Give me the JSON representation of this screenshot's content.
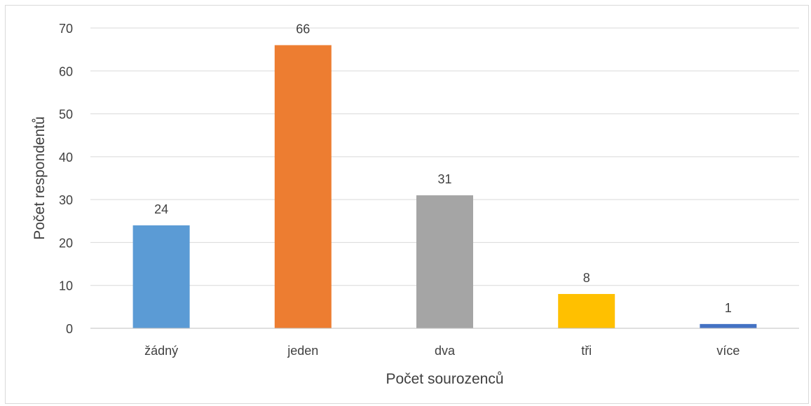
{
  "chart_data": {
    "type": "bar",
    "title": "",
    "xlabel": "Počet sourozenců",
    "ylabel": "Počet respondentů",
    "categories": [
      "žádný",
      "jeden",
      "dva",
      "tři",
      "více"
    ],
    "values": [
      24,
      66,
      31,
      8,
      1
    ],
    "colors": [
      "#5b9bd5",
      "#ed7d31",
      "#a5a5a5",
      "#ffc000",
      "#4472c4"
    ],
    "ylim": [
      0,
      70
    ],
    "yticks": [
      0,
      10,
      20,
      30,
      40,
      50,
      60,
      70
    ],
    "grid": true,
    "legend": "none"
  }
}
